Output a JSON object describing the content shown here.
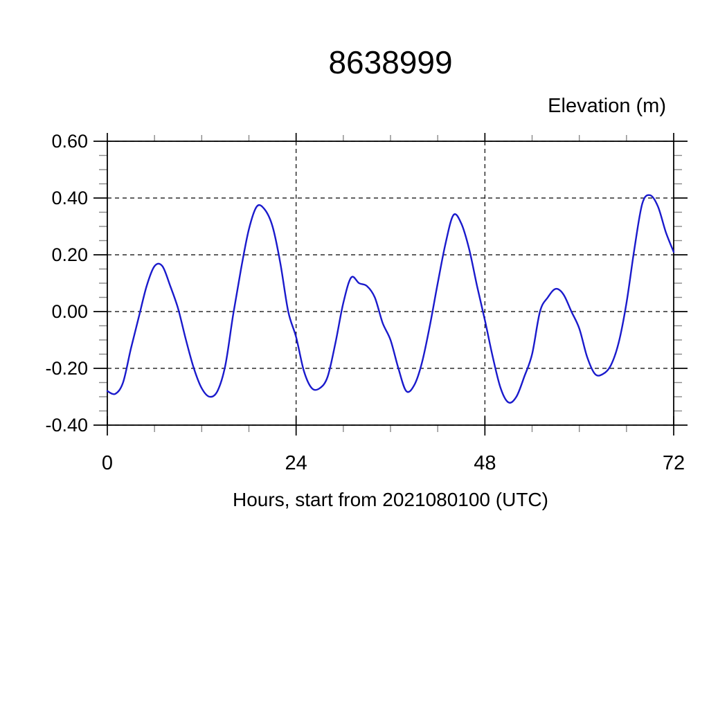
{
  "chart_data": {
    "type": "line",
    "title": "8638999",
    "ylabel": "Elevation (m)",
    "xlabel": "Hours, start from 2021080100 (UTC)",
    "grid": "dashed-major",
    "legend": "none",
    "xlim": [
      0,
      72
    ],
    "ylim": [
      -0.4,
      0.6
    ],
    "xticks": [
      0,
      24,
      48,
      72
    ],
    "xtick_labels": [
      "0",
      "24",
      "48",
      "72"
    ],
    "minor_xtick_step": 6,
    "yticks": [
      -0.4,
      -0.2,
      0.0,
      0.2,
      0.4,
      0.6
    ],
    "ytick_labels": [
      "-0.40",
      "-0.20",
      "0.00",
      "0.20",
      "0.40",
      "0.60"
    ],
    "minor_ytick_step": 0.05,
    "series": [
      {
        "name": "elevation",
        "color": "#1a1acc",
        "x": [
          0,
          1,
          2,
          3,
          4,
          5,
          6,
          7,
          8,
          9,
          10,
          11,
          12,
          13,
          14,
          15,
          16,
          17,
          18,
          19,
          20,
          21,
          22,
          23,
          24,
          25,
          26,
          27,
          28,
          29,
          30,
          31,
          32,
          33,
          34,
          35,
          36,
          37,
          38,
          39,
          40,
          41,
          42,
          43,
          44,
          45,
          46,
          47,
          48,
          49,
          50,
          51,
          52,
          53,
          54,
          55,
          56,
          57,
          58,
          59,
          60,
          61,
          62,
          63,
          64,
          65,
          66,
          67,
          68,
          69,
          70,
          71,
          72
        ],
        "values": [
          -0.28,
          -0.29,
          -0.25,
          -0.13,
          -0.02,
          0.09,
          0.16,
          0.16,
          0.09,
          0.01,
          -0.1,
          -0.2,
          -0.27,
          -0.3,
          -0.28,
          -0.19,
          -0.01,
          0.15,
          0.29,
          0.37,
          0.36,
          0.3,
          0.17,
          0.0,
          -0.09,
          -0.21,
          -0.27,
          -0.27,
          -0.23,
          -0.11,
          0.03,
          0.12,
          0.1,
          0.09,
          0.05,
          -0.04,
          -0.1,
          -0.2,
          -0.28,
          -0.26,
          -0.18,
          -0.05,
          0.1,
          0.24,
          0.34,
          0.31,
          0.22,
          0.09,
          -0.03,
          -0.16,
          -0.27,
          -0.32,
          -0.3,
          -0.23,
          -0.15,
          0.0,
          0.05,
          0.08,
          0.06,
          0.0,
          -0.06,
          -0.16,
          -0.22,
          -0.22,
          -0.19,
          -0.11,
          0.03,
          0.22,
          0.38,
          0.41,
          0.37,
          0.28,
          0.21
        ]
      }
    ]
  },
  "colors": {
    "line": "#1a1acc",
    "axis": "#000000",
    "grid": "#000000",
    "minor_tick": "#888888",
    "text": "#000000",
    "background": "#ffffff"
  }
}
